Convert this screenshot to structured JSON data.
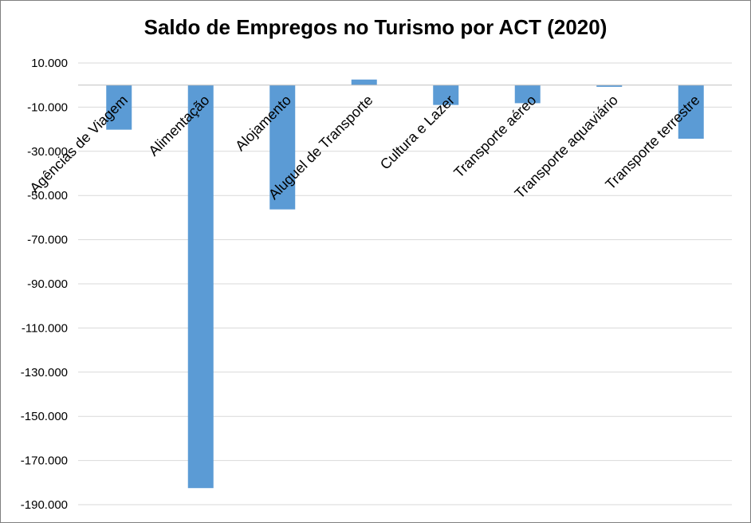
{
  "chart_data": {
    "type": "bar",
    "title": "Saldo de Empregos no Turismo por ACT (2020)",
    "xlabel": "",
    "ylabel": "",
    "categories": [
      "Agências de Viagem",
      "Alimentação",
      "Alojamento",
      "Aluguel de Transporte",
      "Cultura e Lazer",
      "Transporte aéreo",
      "Transporte aquaviário",
      "Transporte terrestre"
    ],
    "values": [
      -20200,
      -182500,
      -56300,
      2500,
      -9000,
      -8200,
      -800,
      -24300
    ],
    "ylim": [
      -190000,
      10000
    ],
    "yticks": [
      10000,
      -10000,
      -30000,
      -50000,
      -70000,
      -90000,
      -110000,
      -130000,
      -150000,
      -170000,
      -190000
    ],
    "ytick_labels": [
      "10.000",
      "-10.000",
      "-30.000",
      "-50.000",
      "-70.000",
      "-90.000",
      "-110.000",
      "-130.000",
      "-150.000",
      "-170.000",
      "-190.000"
    ],
    "grid": true,
    "legend": "none",
    "bar_color": "#5b9bd5",
    "grid_color": "#d9d9d9"
  }
}
